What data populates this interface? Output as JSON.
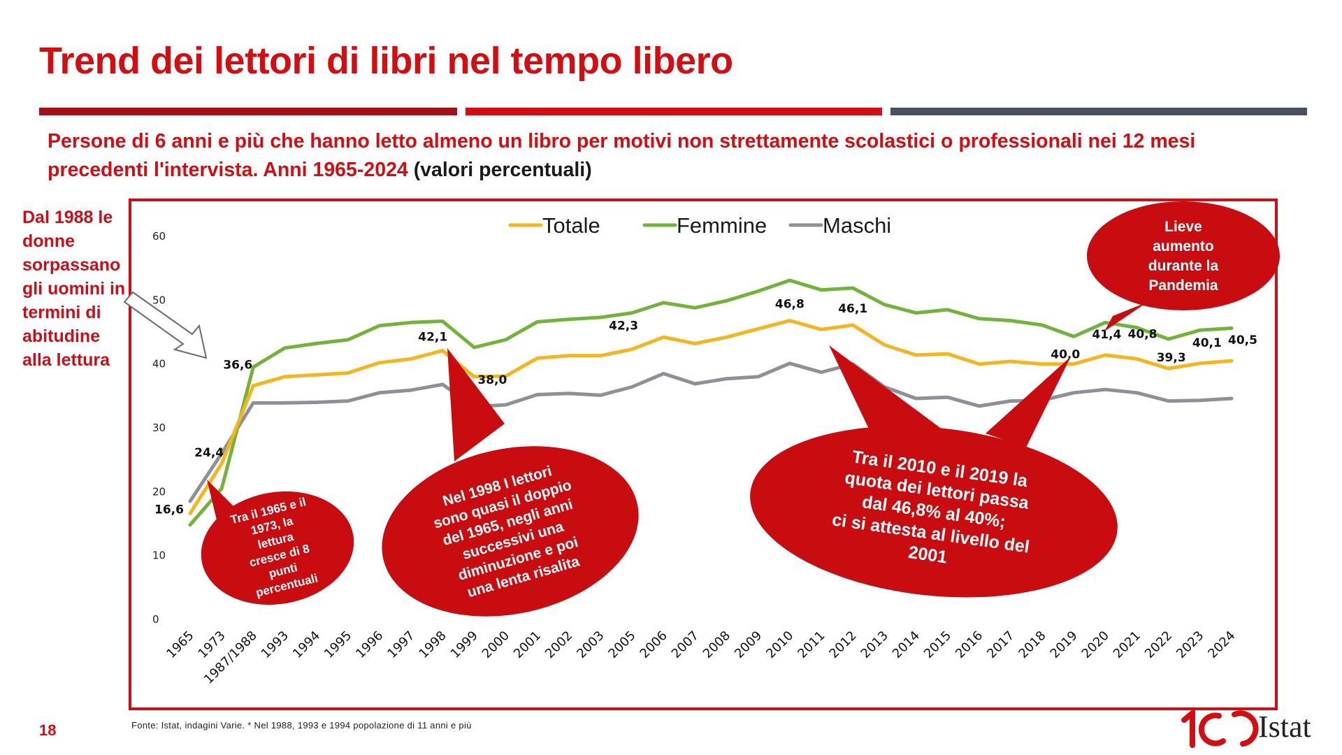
{
  "header": {
    "title": "Trend dei lettori di libri nel tempo libero",
    "subtitle_bold": "Persone di 6 anni e più che hanno letto almeno un libro per motivi non strettamente scolastici o professionali nei 12 mesi precedenti l'intervista. Anni 1965-2024",
    "subtitle_plain": " (valori percentuali)"
  },
  "colors": {
    "accent": "#d40d12",
    "totale": "#f5b51c",
    "femmine": "#72b43a",
    "maschi": "#8f8f97",
    "bubble": "#c90c0f"
  },
  "side_note": "Dal 1988 le donne sorpassano gli uomini in termini di abitudine alla lettura",
  "page_number": "18",
  "footer": {
    "source": "Fonte: Istat, indagini Varie. * Nel 1988, 1993 e 1994 popolazione di 11 anni e più",
    "logo_text": "Istat"
  },
  "callouts": {
    "c1": [
      "Tra il 1965 e il",
      "1973, la",
      "lettura",
      "cresce di 8",
      "punti",
      "percentuali"
    ],
    "c2": [
      "Nel 1998 I lettori",
      "sono quasi il doppio",
      "del 1965, negli anni",
      "successivi una",
      "diminuzione e poi",
      "una lenta risalita"
    ],
    "c3": [
      "Tra il 2010 e il 2019 la",
      "quota dei lettori passa",
      "dal 46,8% al 40%;",
      "ci si attesta al livello del",
      "2001"
    ],
    "c4": [
      "Lieve",
      "aumento",
      "durante la",
      "Pandemia"
    ]
  },
  "chart_data": {
    "type": "line",
    "categories": [
      "1965",
      "1973",
      "1987/1988",
      "1993",
      "1994",
      "1995",
      "1996",
      "1997",
      "1998",
      "1999",
      "2000",
      "2001",
      "2002",
      "2003",
      "2005",
      "2006",
      "2007",
      "2008",
      "2009",
      "2010",
      "2011",
      "2012",
      "2013",
      "2014",
      "2015",
      "2016",
      "2017",
      "2018",
      "2019",
      "2020",
      "2021",
      "2022",
      "2023",
      "2024"
    ],
    "ylim": [
      0,
      60
    ],
    "yticks": [
      "0",
      "10",
      "20",
      "30",
      "40",
      "50",
      "60"
    ],
    "legend_position": "top-center",
    "series": [
      {
        "name": "Totale",
        "color": "#f5b51c",
        "values": [
          16.6,
          24.4,
          36.6,
          38.0,
          38.3,
          38.6,
          40.2,
          40.8,
          42.1,
          38.0,
          38.1,
          40.9,
          41.3,
          41.3,
          42.3,
          44.2,
          43.2,
          44.2,
          45.5,
          46.8,
          45.4,
          46.1,
          43.0,
          41.4,
          41.6,
          40.0,
          40.4,
          40.0,
          40.0,
          41.4,
          40.8,
          39.3,
          40.1,
          40.5
        ]
      },
      {
        "name": "Femmine",
        "color": "#72b43a",
        "values": [
          14.8,
          20.5,
          39.5,
          42.5,
          43.2,
          43.8,
          46.0,
          46.5,
          46.7,
          42.6,
          43.8,
          46.6,
          47.0,
          47.3,
          48.0,
          49.6,
          48.8,
          49.9,
          51.4,
          53.1,
          51.6,
          51.9,
          49.3,
          48.0,
          48.5,
          47.1,
          46.8,
          46.1,
          44.3,
          46.5,
          45.7,
          43.9,
          45.3,
          45.6
        ]
      },
      {
        "name": "Maschi",
        "color": "#8f8f97",
        "values": [
          18.5,
          26.0,
          33.9,
          33.9,
          34.0,
          34.2,
          35.5,
          35.9,
          36.8,
          33.3,
          33.6,
          35.2,
          35.4,
          35.1,
          36.4,
          38.5,
          36.9,
          37.7,
          38.0,
          40.1,
          38.7,
          40.0,
          36.4,
          34.6,
          34.8,
          33.4,
          34.2,
          34.3,
          35.5,
          36.0,
          35.5,
          34.2,
          34.3,
          34.6
        ]
      }
    ],
    "data_labels": [
      {
        "series": "Totale",
        "category": "1965",
        "text": "16,6"
      },
      {
        "series": "Totale",
        "category": "1973",
        "text": "24,4"
      },
      {
        "series": "Totale",
        "category": "1987/1988",
        "text": "36,6"
      },
      {
        "series": "Totale",
        "category": "1998",
        "text": "42,1"
      },
      {
        "series": "Totale",
        "category": "1999",
        "text": "38,0"
      },
      {
        "series": "Totale",
        "category": "2005",
        "text": "42,3"
      },
      {
        "series": "Totale",
        "category": "2010",
        "text": "46,8"
      },
      {
        "series": "Totale",
        "category": "2012",
        "text": "46,1"
      },
      {
        "series": "Totale",
        "category": "2019",
        "text": "40,0"
      },
      {
        "series": "Totale",
        "category": "2020",
        "text": "41,4"
      },
      {
        "series": "Totale",
        "category": "2021",
        "text": "40,8"
      },
      {
        "series": "Totale",
        "category": "2022",
        "text": "39,3"
      },
      {
        "series": "Totale",
        "category": "2023",
        "text": "40,1"
      },
      {
        "series": "Totale",
        "category": "2024",
        "text": "40,5"
      }
    ]
  }
}
